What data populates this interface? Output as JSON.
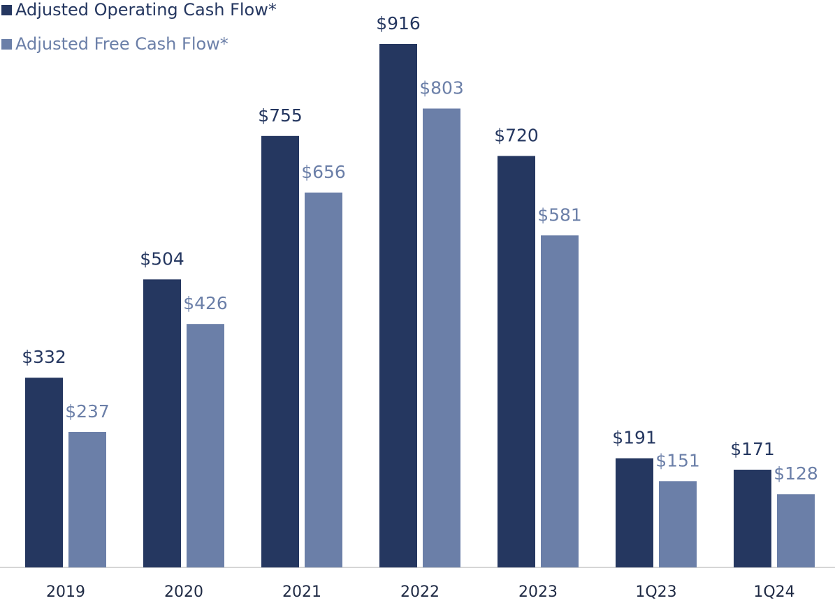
{
  "chart_data": {
    "type": "bar",
    "categories": [
      "2019",
      "2020",
      "2021",
      "2022",
      "2023",
      "1Q23",
      "1Q24"
    ],
    "series": [
      {
        "name": "Adjusted Operating Cash Flow*",
        "color": "#253760",
        "values": [
          332,
          504,
          755,
          916,
          720,
          191,
          171
        ],
        "value_labels": [
          "$332",
          "$504",
          "$755",
          "$916",
          "$720",
          "$191",
          "$171"
        ]
      },
      {
        "name": "Adjusted Free Cash Flow*",
        "color": "#6b7fa8",
        "values": [
          237,
          426,
          656,
          803,
          581,
          151,
          128
        ],
        "value_labels": [
          "$237",
          "$426",
          "$656",
          "$803",
          "$581",
          "$151",
          "$128"
        ]
      }
    ]
  }
}
